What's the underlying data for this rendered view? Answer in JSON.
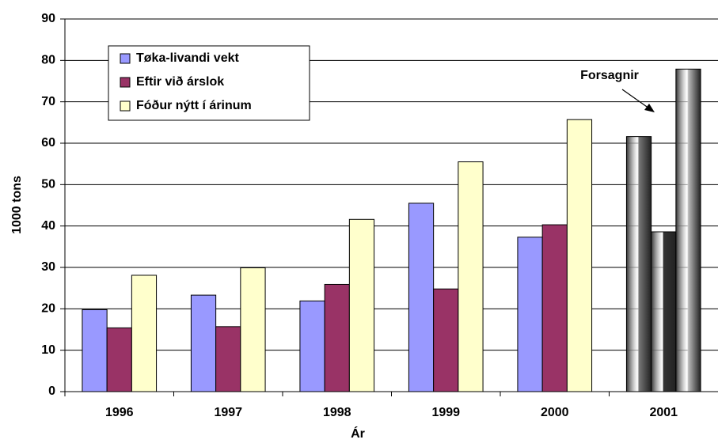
{
  "chart_data": {
    "type": "bar",
    "xlabel": "Ár",
    "ylabel": "1000 tons",
    "categories": [
      "1996",
      "1997",
      "1998",
      "1999",
      "2000",
      "2001"
    ],
    "series": [
      {
        "name": "Tøka-livandi vekt",
        "color": "#9999ff",
        "colors": [
          "#9999ff",
          "#9999ff",
          "#9999ff",
          "#9999ff",
          "#9999ff",
          "#777777"
        ],
        "values": [
          19.8,
          23.3,
          21.9,
          45.5,
          37.3,
          61.6
        ]
      },
      {
        "name": "Eftir við árslok",
        "color": "#993366",
        "colors": [
          "#993366",
          "#993366",
          "#993366",
          "#993366",
          "#993366",
          "#333333"
        ],
        "values": [
          15.4,
          15.7,
          25.9,
          24.8,
          40.3,
          38.6
        ]
      },
      {
        "name": "Fóður nýtt í árinum",
        "color": "#ffffcc",
        "colors": [
          "#ffffcc",
          "#ffffcc",
          "#ffffcc",
          "#ffffcc",
          "#ffffcc",
          "#bbbbbb"
        ],
        "values": [
          28.1,
          29.9,
          41.6,
          55.5,
          65.7,
          77.9
        ]
      }
    ],
    "annotation": "Forsagnir",
    "ylim": [
      0,
      90
    ],
    "yticks": [
      0,
      10,
      20,
      30,
      40,
      50,
      60,
      70,
      80,
      90
    ],
    "grid": true,
    "legend": "upper left"
  }
}
